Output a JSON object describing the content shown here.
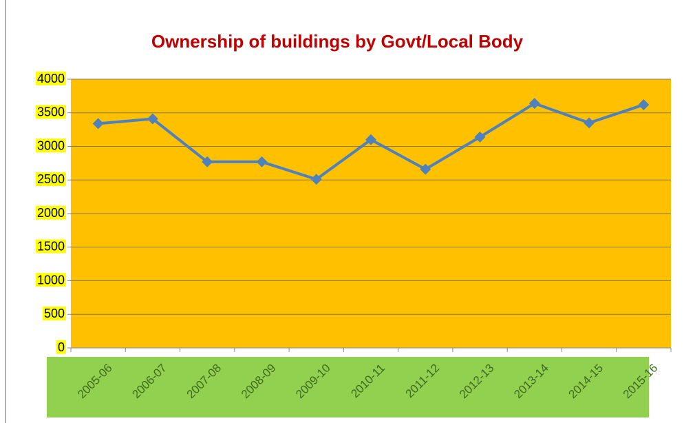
{
  "chart_data": {
    "type": "line",
    "title": "Ownership of buildings by Govt/Local Body",
    "categories": [
      "2005-06",
      "2006-07",
      "2007-08",
      "2008-09",
      "2009-10",
      "2010-11",
      "2011-12",
      "2012-13",
      "2013-14",
      "2014-15",
      "2015-16"
    ],
    "series": [
      {
        "name": "Ownership of buildings by Govt/Local Body",
        "color": "#4f81bd",
        "values": [
          3340,
          3410,
          2770,
          2770,
          2510,
          3100,
          2660,
          3140,
          3640,
          3350,
          3620
        ]
      }
    ],
    "ylim": [
      0,
      4000
    ],
    "yticks": [
      0,
      500,
      1000,
      1500,
      2000,
      2500,
      3000,
      3500,
      4000
    ],
    "grid": true
  }
}
